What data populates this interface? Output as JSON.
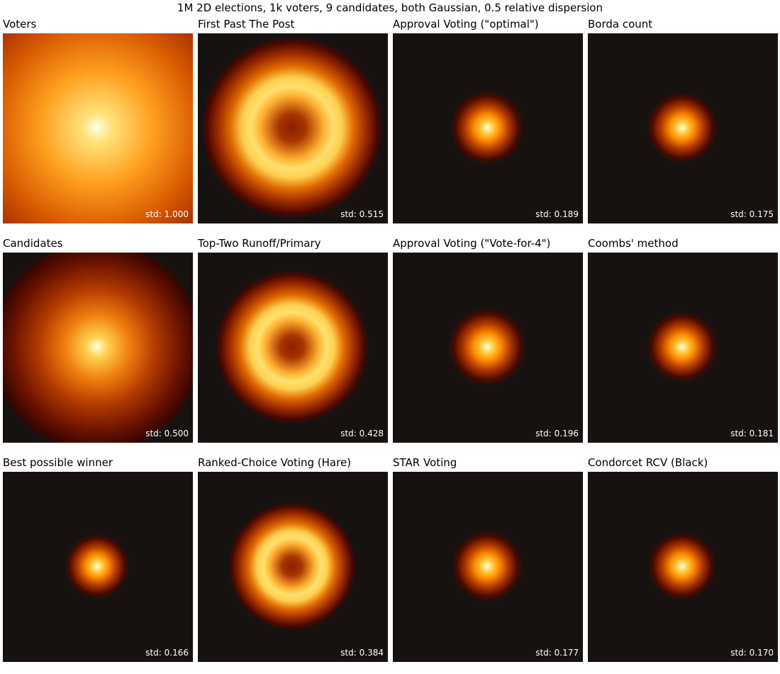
{
  "title": "1M 2D elections, 1k voters, 9 candidates, both Gaussian, 0.5 relative dispersion",
  "panels": [
    {
      "title": "Voters",
      "label": "std: 1.000"
    },
    {
      "title": "First Past The Post",
      "label": "std: 0.515"
    },
    {
      "title": "Approval Voting (\"optimal\")",
      "label": "std: 0.189"
    },
    {
      "title": "Borda count",
      "label": "std: 0.175"
    },
    {
      "title": "Candidates",
      "label": "std: 0.500"
    },
    {
      "title": "Top-Two Runoff/Primary",
      "label": "std: 0.428"
    },
    {
      "title": "Approval Voting (\"Vote-for-4\")",
      "label": "std: 0.196"
    },
    {
      "title": "Coombs' method",
      "label": "std: 0.181"
    },
    {
      "title": "Best possible winner",
      "label": "std: 0.166"
    },
    {
      "title": "Ranked-Choice Voting (Hare)",
      "label": "std: 0.384"
    },
    {
      "title": "STAR Voting",
      "label": "std: 0.177"
    },
    {
      "title": "Condorcet RCV (Black)",
      "label": "std: 0.170"
    }
  ]
}
